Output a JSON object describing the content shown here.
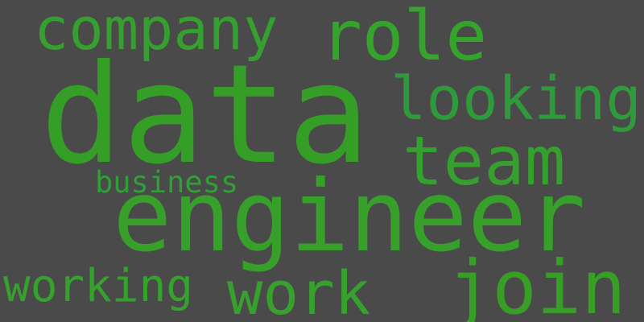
{
  "background_color": "#4a4a4a",
  "word_color": "#35a02a",
  "words": {
    "data": "data",
    "engineer": "engineer",
    "role": "role",
    "company": "company",
    "looking": "looking",
    "team": "team",
    "join": "join",
    "work": "work",
    "working": "working",
    "business": "business"
  }
}
